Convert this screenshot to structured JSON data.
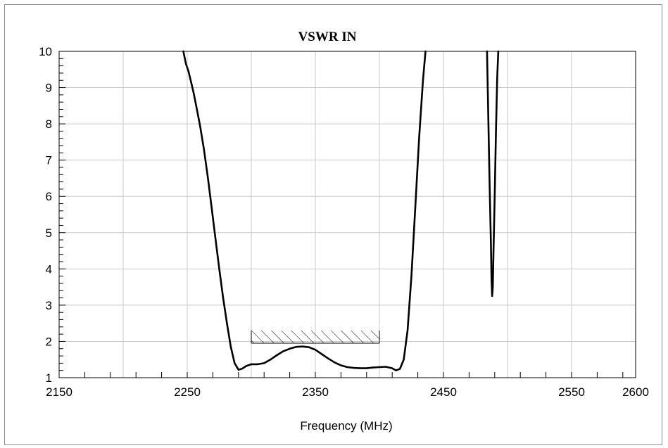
{
  "chart_data": {
    "type": "line",
    "title": "VSWR IN",
    "xlabel": "Frequency (MHz)",
    "ylabel": "",
    "xlim": [
      2150,
      2600
    ],
    "ylim": [
      1,
      10
    ],
    "x_ticks": [
      2150,
      2250,
      2350,
      2450,
      2550,
      2600
    ],
    "y_ticks": [
      1,
      2,
      3,
      4,
      5,
      6,
      7,
      8,
      9,
      10
    ],
    "x_grid": [
      2150,
      2200,
      2250,
      2300,
      2350,
      2400,
      2450,
      2500,
      2550,
      2600
    ],
    "x_minor_step": 20,
    "y_minor_step": 0.2,
    "grid": true,
    "series": [
      {
        "segments": [
          [
            [
              2247,
              10
            ],
            [
              2249,
              9.65
            ],
            [
              2251,
              9.45
            ],
            [
              2253,
              9.15
            ],
            [
              2255,
              8.85
            ],
            [
              2257,
              8.5
            ],
            [
              2260,
              7.95
            ],
            [
              2263,
              7.3
            ],
            [
              2266,
              6.55
            ],
            [
              2269,
              5.7
            ],
            [
              2272,
              4.85
            ],
            [
              2275,
              4.0
            ],
            [
              2278,
              3.2
            ],
            [
              2281,
              2.5
            ],
            [
              2284,
              1.85
            ],
            [
              2287,
              1.4
            ],
            [
              2290,
              1.22
            ],
            [
              2293,
              1.25
            ],
            [
              2296,
              1.32
            ],
            [
              2300,
              1.37
            ],
            [
              2305,
              1.37
            ],
            [
              2310,
              1.4
            ],
            [
              2315,
              1.5
            ],
            [
              2320,
              1.62
            ],
            [
              2325,
              1.73
            ],
            [
              2330,
              1.8
            ],
            [
              2335,
              1.85
            ],
            [
              2340,
              1.86
            ],
            [
              2345,
              1.84
            ],
            [
              2350,
              1.77
            ],
            [
              2355,
              1.65
            ],
            [
              2360,
              1.53
            ],
            [
              2365,
              1.42
            ],
            [
              2370,
              1.34
            ],
            [
              2375,
              1.29
            ],
            [
              2380,
              1.27
            ],
            [
              2385,
              1.26
            ],
            [
              2390,
              1.26
            ],
            [
              2395,
              1.28
            ],
            [
              2400,
              1.29
            ],
            [
              2405,
              1.3
            ],
            [
              2410,
              1.26
            ],
            [
              2413,
              1.2
            ],
            [
              2416,
              1.24
            ],
            [
              2419,
              1.5
            ],
            [
              2422,
              2.3
            ],
            [
              2425,
              3.8
            ],
            [
              2428,
              5.7
            ],
            [
              2431,
              7.6
            ],
            [
              2434,
              9.2
            ],
            [
              2436,
              10
            ]
          ],
          [
            [
              2484,
              10
            ],
            [
              2485,
              8.2
            ],
            [
              2486,
              6.4
            ],
            [
              2487,
              4.8
            ],
            [
              2487.5,
              3.7
            ],
            [
              2488,
              3.25
            ],
            [
              2488.5,
              3.5
            ],
            [
              2489,
              4.4
            ],
            [
              2490,
              6.0
            ],
            [
              2491,
              7.8
            ],
            [
              2492,
              9.3
            ],
            [
              2492.8,
              10
            ]
          ]
        ]
      }
    ],
    "annotations": [
      {
        "type": "hatched-band",
        "x_range": [
          2300,
          2400
        ],
        "y_range": [
          1.95,
          2.3
        ]
      }
    ]
  }
}
